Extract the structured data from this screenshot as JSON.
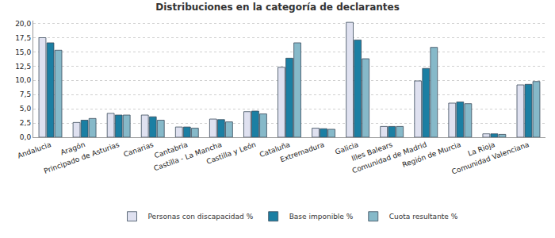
{
  "chart_data": {
    "type": "bar",
    "title": "Distribuciones en la categoría de declarantes",
    "categories": [
      "Andalucia",
      "Aragón",
      "Principado de Asturias",
      "Canarias",
      "Cantabria",
      "Castilla - La Mancha",
      "Castilla y León",
      "Cataluña",
      "Extremadura",
      "Galicia",
      "Illes Balears",
      "Comunidad de Madrid",
      "Región de Murcia",
      "La Rioja",
      "Comunidad Valenciana"
    ],
    "series": [
      {
        "name": "Personas con discapacidad %",
        "color": "#dfe1f0",
        "values": [
          17.5,
          2.6,
          4.2,
          3.9,
          1.8,
          3.2,
          4.5,
          12.3,
          1.6,
          20.2,
          1.9,
          9.9,
          6.0,
          0.6,
          9.2
        ]
      },
      {
        "name": "Base imponible %",
        "color": "#1b7fa3",
        "values": [
          16.6,
          3.0,
          3.9,
          3.6,
          1.8,
          3.1,
          4.6,
          13.9,
          1.5,
          17.1,
          1.9,
          12.1,
          6.2,
          0.6,
          9.3
        ]
      },
      {
        "name": "Cuota resultante %",
        "color": "#86b9c9",
        "values": [
          15.3,
          3.3,
          3.9,
          3.0,
          1.6,
          2.7,
          4.1,
          16.6,
          1.4,
          13.8,
          1.9,
          15.8,
          5.9,
          0.5,
          9.8
        ]
      }
    ],
    "ylim": [
      0,
      20.5
    ],
    "yticks": [
      {
        "value": 0,
        "label": "0,0"
      },
      {
        "value": 2.5,
        "label": "2,5"
      },
      {
        "value": 5,
        "label": "5,0"
      },
      {
        "value": 7.5,
        "label": "7,5"
      },
      {
        "value": 10,
        "label": "10,0"
      },
      {
        "value": 12.5,
        "label": "12,5"
      },
      {
        "value": 15,
        "label": "15,0"
      },
      {
        "value": 17.5,
        "label": "17,5"
      },
      {
        "value": 20,
        "label": "20,0"
      }
    ],
    "grid": true,
    "legend": "bottom"
  }
}
